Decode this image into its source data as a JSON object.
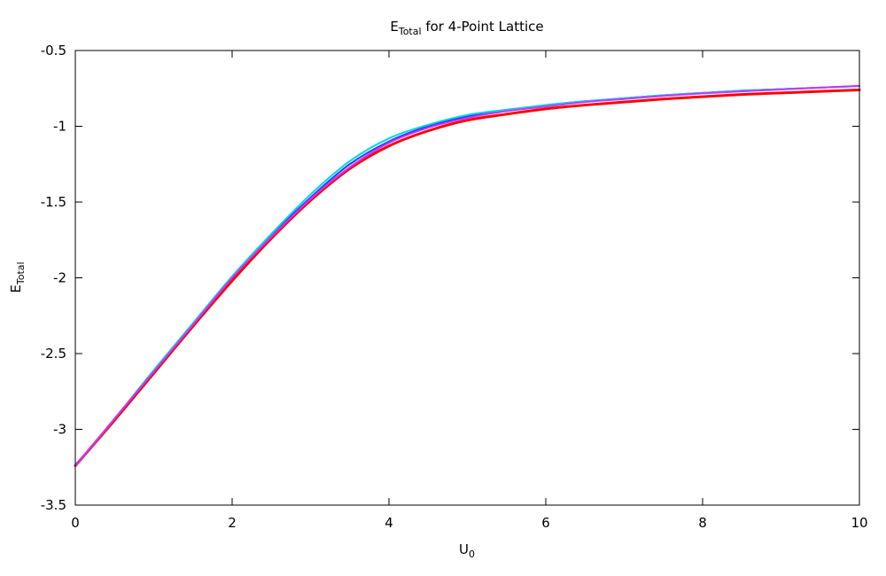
{
  "chart_data": {
    "type": "line",
    "title": {
      "main": "E",
      "sub": "Total",
      "rest": " for 4-Point Lattice"
    },
    "xlabel": {
      "main": "U",
      "sub": "0"
    },
    "ylabel": {
      "main": "E",
      "sub": "Total"
    },
    "xlim": [
      0,
      10
    ],
    "ylim": [
      -3.5,
      -0.5
    ],
    "xticks": [
      0,
      2,
      4,
      6,
      8,
      10
    ],
    "yticks": [
      -3.5,
      -3,
      -2.5,
      -2,
      -1.5,
      -1,
      -0.5
    ],
    "xtick_labels": [
      "0",
      "2",
      "4",
      "6",
      "8",
      "10"
    ],
    "ytick_labels": [
      "-3.5",
      "-3",
      "-2.5",
      "-2",
      "-1.5",
      "-1",
      "-0.5"
    ],
    "grid": false,
    "legend": "none",
    "x": [
      0,
      0.5,
      1,
      1.5,
      2,
      2.5,
      3,
      3.5,
      4,
      4.5,
      5,
      5.5,
      6,
      6.5,
      7,
      7.5,
      8,
      8.5,
      9,
      9.5,
      10
    ],
    "series": [
      {
        "color": "#ff0000",
        "stroke": 3.0,
        "values": [
          -3.24,
          -2.94,
          -2.63,
          -2.32,
          -2.02,
          -1.74,
          -1.49,
          -1.28,
          -1.13,
          -1.03,
          -0.96,
          -0.92,
          -0.885,
          -0.86,
          -0.84,
          -0.82,
          -0.805,
          -0.79,
          -0.78,
          -0.77,
          -0.76
        ]
      },
      {
        "color": "#1f3fff",
        "stroke": 2.0,
        "values": [
          -3.24,
          -2.93,
          -2.62,
          -2.31,
          -2.0,
          -1.72,
          -1.47,
          -1.25,
          -1.1,
          -1.0,
          -0.935,
          -0.895,
          -0.86,
          -0.835,
          -0.815,
          -0.795,
          -0.78,
          -0.765,
          -0.755,
          -0.745,
          -0.735
        ]
      },
      {
        "color": "#00d8d8",
        "stroke": 2.0,
        "values": [
          -3.24,
          -2.93,
          -2.61,
          -2.3,
          -1.99,
          -1.71,
          -1.45,
          -1.23,
          -1.08,
          -0.99,
          -0.925,
          -0.89,
          -0.86,
          -0.835,
          -0.815,
          -0.795,
          -0.78,
          -0.765,
          -0.755,
          -0.745,
          -0.735
        ]
      },
      {
        "color": "#cc33ff",
        "stroke": 2.0,
        "values": [
          -3.24,
          -2.93,
          -2.62,
          -2.31,
          -2.0,
          -1.73,
          -1.48,
          -1.27,
          -1.11,
          -1.01,
          -0.945,
          -0.9,
          -0.87,
          -0.84,
          -0.82,
          -0.8,
          -0.783,
          -0.77,
          -0.757,
          -0.745,
          -0.733
        ]
      }
    ]
  }
}
